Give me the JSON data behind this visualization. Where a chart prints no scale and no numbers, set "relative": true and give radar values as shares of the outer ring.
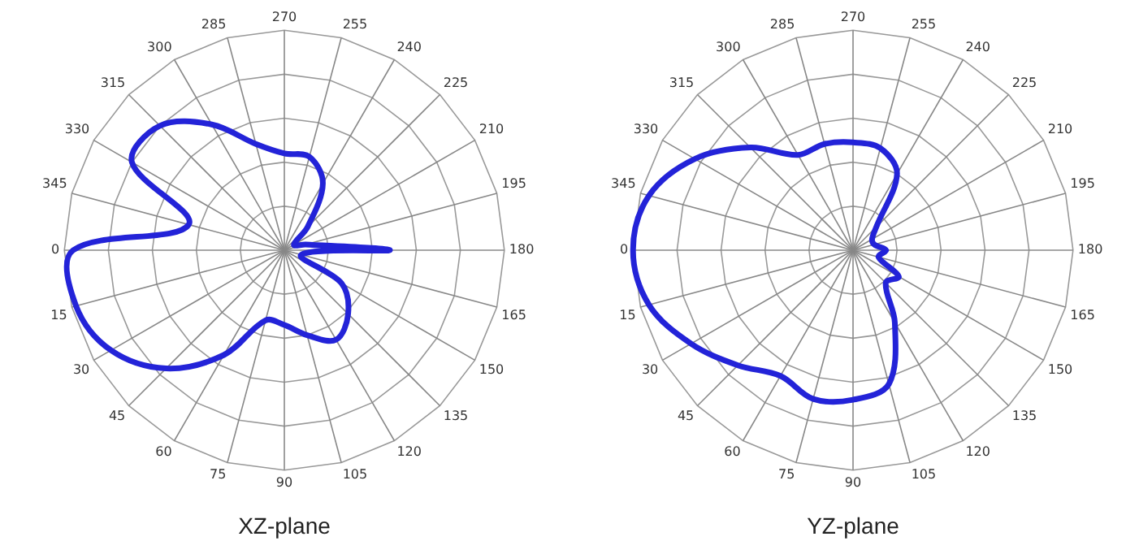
{
  "chart_data": [
    {
      "type": "radar",
      "title": "XZ-plane",
      "relative": true,
      "grid": true,
      "marker": "none",
      "categories": [
        "270",
        "255",
        "240",
        "225",
        "210",
        "195",
        "180",
        "165",
        "150",
        "135",
        "120",
        "105",
        "90",
        "75",
        "60",
        "45",
        "30",
        "15",
        "0",
        "345",
        "330",
        "315",
        "300",
        "285"
      ],
      "series": [
        {
          "color": "#2323d8",
          "values": [
            0.44,
            0.44,
            0.35,
            0.15,
            0.05,
            0.1,
            0.48,
            0.08,
            0.3,
            0.41,
            0.47,
            0.4,
            0.34,
            0.33,
            0.55,
            0.76,
            0.91,
            0.98,
            0.96,
            0.45,
            0.8,
            0.8,
            0.66,
            0.5
          ]
        }
      ]
    },
    {
      "type": "radar",
      "title": "YZ-plane",
      "relative": true,
      "grid": true,
      "marker": "none",
      "categories": [
        "270",
        "255",
        "240",
        "225",
        "210",
        "195",
        "180",
        "165",
        "150",
        "135",
        "120",
        "105",
        "90",
        "75",
        "60",
        "45",
        "30",
        "15",
        "0",
        "345",
        "330",
        "315",
        "300",
        "285"
      ],
      "series": [
        {
          "color": "#2323d8",
          "values": [
            0.49,
            0.48,
            0.4,
            0.15,
            0.1,
            0.1,
            0.15,
            0.12,
            0.24,
            0.21,
            0.38,
            0.63,
            0.68,
            0.7,
            0.66,
            0.74,
            0.85,
            0.96,
            1.0,
            0.96,
            0.83,
            0.66,
            0.5,
            0.5
          ]
        }
      ]
    }
  ]
}
